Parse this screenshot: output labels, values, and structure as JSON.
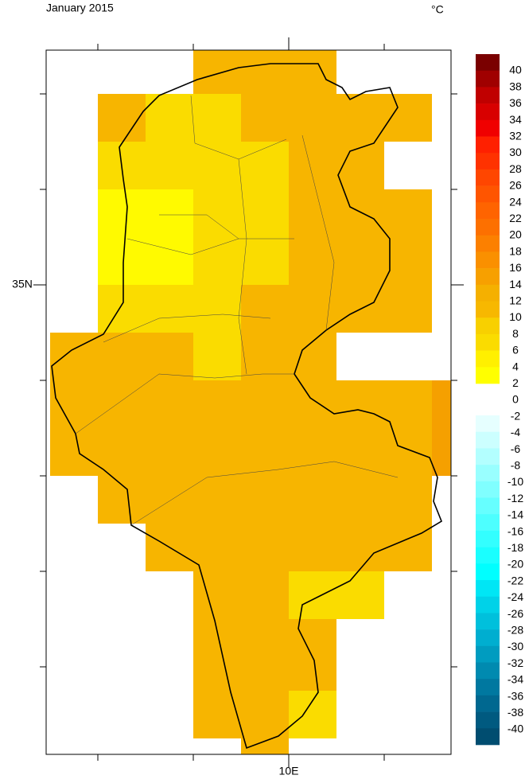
{
  "title": "January 2015",
  "unit": "°C",
  "axes": {
    "y_label": "35N",
    "x_label": "10E"
  },
  "colorbar": {
    "warm_labels": [
      40,
      38,
      36,
      34,
      32,
      30,
      28,
      26,
      24,
      22,
      20,
      18,
      16,
      14,
      12,
      10,
      8,
      6,
      4,
      2
    ],
    "zero_label": 0,
    "cold_labels": [
      -2,
      -4,
      -6,
      -8,
      -10,
      -12,
      -14,
      -16,
      -18,
      -20,
      -22,
      -24,
      -26,
      -28,
      -30,
      -32,
      -34,
      -36,
      -38,
      -40
    ],
    "warm_colors": [
      "#7a0000",
      "#a00000",
      "#c00000",
      "#d80000",
      "#f00000",
      "#ff2000",
      "#ff3200",
      "#ff4600",
      "#ff5500",
      "#ff6400",
      "#fd7000",
      "#fc8000",
      "#fa9000",
      "#f7a000",
      "#f5b000",
      "#f7b800",
      "#f8d000",
      "#fadc00",
      "#fff000",
      "#ffff00"
    ],
    "cold_colors": [
      "#e6ffff",
      "#ccffff",
      "#b3ffff",
      "#99ffff",
      "#80ffff",
      "#66ffff",
      "#4dffff",
      "#33ffff",
      "#1affff",
      "#00ffff",
      "#00e6f5",
      "#00d2e8",
      "#00c0dc",
      "#00aed0",
      "#009cc0",
      "#008ab0",
      "#0078a0",
      "#006890",
      "#005a80",
      "#004d70"
    ]
  }
}
